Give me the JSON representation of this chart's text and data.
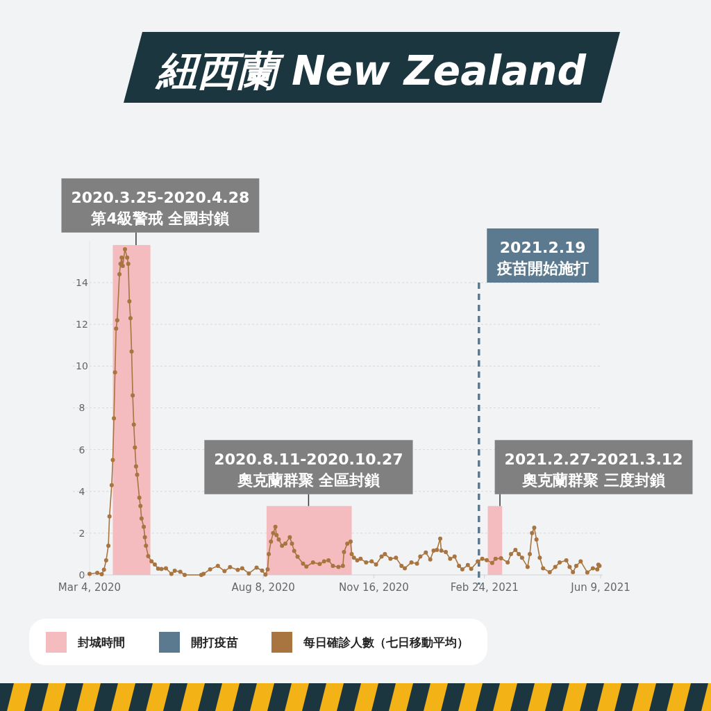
{
  "chart_data": {
    "type": "line",
    "title": "紐西蘭 New Zealand",
    "xlim": [
      "2020-03-04",
      "2021-06-09"
    ],
    "ylim": [
      0,
      16
    ],
    "xticks": [
      {
        "value": "2020-03-04",
        "label": "Mar 4, 2020"
      },
      {
        "value": "2020-08-08",
        "label": "Aug 8, 2020"
      },
      {
        "value": "2020-11-16",
        "label": "Nov 16, 2020"
      },
      {
        "value": "2021-02-24",
        "label": "Feb 24, 2021"
      },
      {
        "value": "2021-06-09",
        "label": "Jun 9, 2021"
      }
    ],
    "yticks": [
      0,
      2,
      4,
      6,
      8,
      10,
      12,
      14
    ],
    "grid": "y",
    "legend": "bottom",
    "marker": "circle",
    "series": [
      {
        "name": "每日確診人數（七日移動平均）",
        "color": "#a8743f",
        "x": [
          "2020-03-04",
          "2020-03-11",
          "2020-03-15",
          "2020-03-17",
          "2020-03-19",
          "2020-03-21",
          "2020-03-22",
          "2020-03-24",
          "2020-03-25",
          "2020-03-26",
          "2020-03-27",
          "2020-03-28",
          "2020-03-29",
          "2020-03-31",
          "2020-04-01",
          "2020-04-02",
          "2020-04-03",
          "2020-04-05",
          "2020-04-07",
          "2020-04-08",
          "2020-04-09",
          "2020-04-10",
          "2020-04-11",
          "2020-04-12",
          "2020-04-13",
          "2020-04-14",
          "2020-04-15",
          "2020-04-16",
          "2020-04-18",
          "2020-04-19",
          "2020-04-20",
          "2020-04-22",
          "2020-04-23",
          "2020-04-24",
          "2020-04-26",
          "2020-04-29",
          "2020-05-02",
          "2020-05-05",
          "2020-05-08",
          "2020-05-12",
          "2020-05-17",
          "2020-05-20",
          "2020-05-25",
          "2020-05-29",
          "2020-06-13",
          "2020-06-15",
          "2020-06-21",
          "2020-06-28",
          "2020-07-04",
          "2020-07-09",
          "2020-07-16",
          "2020-07-20",
          "2020-07-26",
          "2020-08-02",
          "2020-08-07",
          "2020-08-10",
          "2020-08-12",
          "2020-08-13",
          "2020-08-15",
          "2020-08-17",
          "2020-08-19",
          "2020-08-20",
          "2020-08-22",
          "2020-08-25",
          "2020-08-28",
          "2020-09-01",
          "2020-09-03",
          "2020-09-05",
          "2020-09-08",
          "2020-09-13",
          "2020-09-16",
          "2020-09-22",
          "2020-09-28",
          "2020-10-02",
          "2020-10-06",
          "2020-10-10",
          "2020-10-15",
          "2020-10-19",
          "2020-10-20",
          "2020-10-23",
          "2020-10-26",
          "2020-10-27",
          "2020-10-29",
          "2020-11-01",
          "2020-11-04",
          "2020-11-09",
          "2020-11-14",
          "2020-11-18",
          "2020-11-23",
          "2020-11-26",
          "2020-12-01",
          "2020-12-06",
          "2020-12-11",
          "2020-12-14",
          "2020-12-20",
          "2020-12-25",
          "2020-12-28",
          "2021-01-02",
          "2021-01-06",
          "2021-01-09",
          "2021-01-12",
          "2021-01-15",
          "2021-01-16",
          "2021-01-20",
          "2021-01-24",
          "2021-01-28",
          "2021-02-01",
          "2021-02-04",
          "2021-02-09",
          "2021-02-12",
          "2021-02-18",
          "2021-02-22",
          "2021-02-26",
          "2021-03-03",
          "2021-03-06",
          "2021-03-11",
          "2021-03-17",
          "2021-03-20",
          "2021-03-24",
          "2021-03-27",
          "2021-03-30",
          "2021-04-04",
          "2021-04-06",
          "2021-04-08",
          "2021-04-10",
          "2021-04-12",
          "2021-04-15",
          "2021-04-18",
          "2021-04-24",
          "2021-04-29",
          "2021-05-03",
          "2021-05-09",
          "2021-05-12",
          "2021-05-15",
          "2021-05-18",
          "2021-05-22",
          "2021-05-28",
          "2021-06-02",
          "2021-06-06",
          "2021-06-07",
          "2021-06-08"
        ],
        "values": [
          0.05,
          0.1,
          0.03,
          0.25,
          0.7,
          1.4,
          2.8,
          4.3,
          5.5,
          7.5,
          9.7,
          11.8,
          12.2,
          14.4,
          14.9,
          15.2,
          14.8,
          15.6,
          15.2,
          14.9,
          13.1,
          12.3,
          10.7,
          8.6,
          7.2,
          6.1,
          5.2,
          4.8,
          3.7,
          3.3,
          2.7,
          2.3,
          1.8,
          1.4,
          0.9,
          0.65,
          0.5,
          0.3,
          0.28,
          0.32,
          0.05,
          0.2,
          0.15,
          0,
          0,
          0.05,
          0.27,
          0.43,
          0.18,
          0.37,
          0.24,
          0.32,
          0.07,
          0.35,
          0.21,
          0.02,
          0.27,
          1.0,
          1.6,
          2.0,
          2.3,
          1.9,
          1.7,
          1.4,
          1.5,
          1.8,
          1.5,
          1.15,
          0.87,
          0.54,
          0.4,
          0.6,
          0.52,
          0.65,
          0.7,
          0.43,
          0.38,
          0.43,
          1.1,
          1.5,
          1.6,
          1.0,
          0.82,
          0.7,
          0.77,
          0.6,
          0.65,
          0.5,
          0.88,
          1.0,
          0.77,
          0.82,
          0.43,
          0.32,
          0.6,
          0.54,
          0.88,
          1.07,
          0.74,
          1.16,
          1.2,
          1.74,
          1.16,
          1.1,
          0.77,
          0.88,
          0.43,
          0.27,
          0.47,
          0.29,
          0.65,
          0.77,
          0.71,
          0.57,
          0.77,
          0.8,
          0.6,
          1.0,
          1.2,
          1.0,
          0.82,
          0.38,
          1.0,
          2.0,
          2.26,
          1.7,
          0.82,
          0.32,
          0.13,
          0.38,
          0.6,
          0.7,
          0.38,
          0.13,
          0.43,
          0.65,
          0.12,
          0.32,
          0.27,
          0.49,
          0.43
        ]
      }
    ],
    "bands": [
      {
        "axis": "x",
        "from": "2020-03-25",
        "to": "2020-04-28",
        "label": "封城時間",
        "color": "#f4bcbf"
      },
      {
        "axis": "x",
        "from": "2020-08-11",
        "to": "2020-10-27",
        "color": "#f4bcbf"
      },
      {
        "axis": "x",
        "from": "2021-02-27",
        "to": "2021-03-12",
        "color": "#f4bcbf"
      }
    ],
    "ref_lines": [
      {
        "axis": "x",
        "value": "2021-02-19",
        "label": "開打疫苗",
        "color": "#5b7a8f",
        "line_style": "dashed"
      }
    ],
    "annotations": [
      {
        "text": "2020.3.25-2020.4.28\n第4級警戒 全國封鎖",
        "x": "2020-04-15",
        "y": 15.8
      },
      {
        "text": "2020.8.11-2020.10.27\n奧克蘭群聚 全區封鎖",
        "x": "2020-09-18",
        "y": 3.3
      },
      {
        "text": "2021.2.27-2021.3.12\n奧克蘭群聚 三度封鎖",
        "x": "2021-03-10",
        "y": 3.3
      },
      {
        "text": "2021.2.19\n疫苗開始施打",
        "x": "2021-02-19",
        "y": 14
      }
    ]
  }
}
